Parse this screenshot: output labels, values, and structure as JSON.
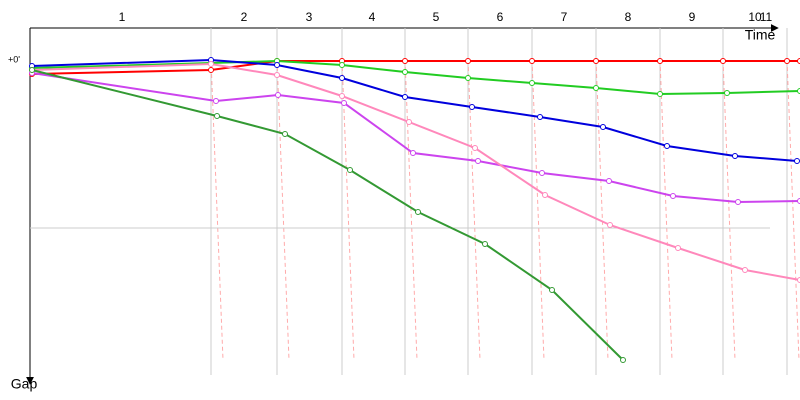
{
  "chart_data": {
    "type": "line",
    "x_label": "Time",
    "y_label": "Gap",
    "xlim": [
      0,
      770
    ],
    "ylim": [
      0,
      315
    ],
    "xticks": [
      {
        "value": 92,
        "label": "1"
      },
      {
        "value": 214,
        "label": "2"
      },
      {
        "value": 279,
        "label": "3"
      },
      {
        "value": 342,
        "label": "4"
      },
      {
        "value": 406,
        "label": "5"
      },
      {
        "value": 470,
        "label": "6"
      },
      {
        "value": 534,
        "label": "7"
      },
      {
        "value": 598,
        "label": "8"
      },
      {
        "value": 662,
        "label": "9"
      },
      {
        "value": 725,
        "label": "10"
      },
      {
        "value": 736,
        "label": "11"
      }
    ],
    "yticks": [
      {
        "value": 0,
        "label": "+0'"
      }
    ],
    "x_gridlines": [
      181,
      247,
      312,
      375,
      438,
      502,
      566,
      630,
      693,
      757
    ],
    "y_gridlines": [
      168
    ],
    "series": [
      {
        "color": "#ff0000",
        "x": [
          2,
          181,
          247,
          312,
          375,
          438,
          502,
          566,
          630,
          693,
          757,
          770
        ],
        "values": [
          14,
          10,
          1,
          1,
          1,
          1,
          1,
          1,
          1,
          1,
          1,
          1
        ]
      },
      {
        "color": "#22cc22",
        "x": [
          2,
          181,
          247,
          312,
          375,
          438,
          502,
          566,
          630,
          697,
          770
        ],
        "values": [
          8,
          3,
          1,
          5,
          12,
          18,
          23,
          28,
          34,
          33,
          31
        ]
      },
      {
        "color": "#0000dd",
        "x": [
          2,
          181,
          247,
          312,
          375,
          442,
          510,
          573,
          637,
          705,
          767
        ],
        "values": [
          6,
          0,
          5,
          18,
          37,
          47,
          57,
          67,
          86,
          96,
          101
        ]
      },
      {
        "color": "#cc44ee",
        "x": [
          2,
          186,
          248,
          314,
          383,
          448,
          512,
          579,
          643,
          708,
          770
        ],
        "values": [
          13,
          41,
          35,
          43,
          93,
          101,
          113,
          121,
          136,
          142,
          141
        ]
      },
      {
        "color": "#ff88bb",
        "x": [
          2,
          181,
          247,
          312,
          379,
          445,
          515,
          580,
          648,
          715,
          770
        ],
        "values": [
          10,
          4,
          15,
          36,
          62,
          88,
          135,
          165,
          188,
          210,
          220
        ]
      },
      {
        "color": "#339933",
        "x": [
          2,
          187,
          255,
          320,
          388,
          455,
          522,
          593
        ],
        "values": [
          10,
          56,
          74,
          110,
          152,
          184,
          230,
          300
        ]
      }
    ]
  }
}
